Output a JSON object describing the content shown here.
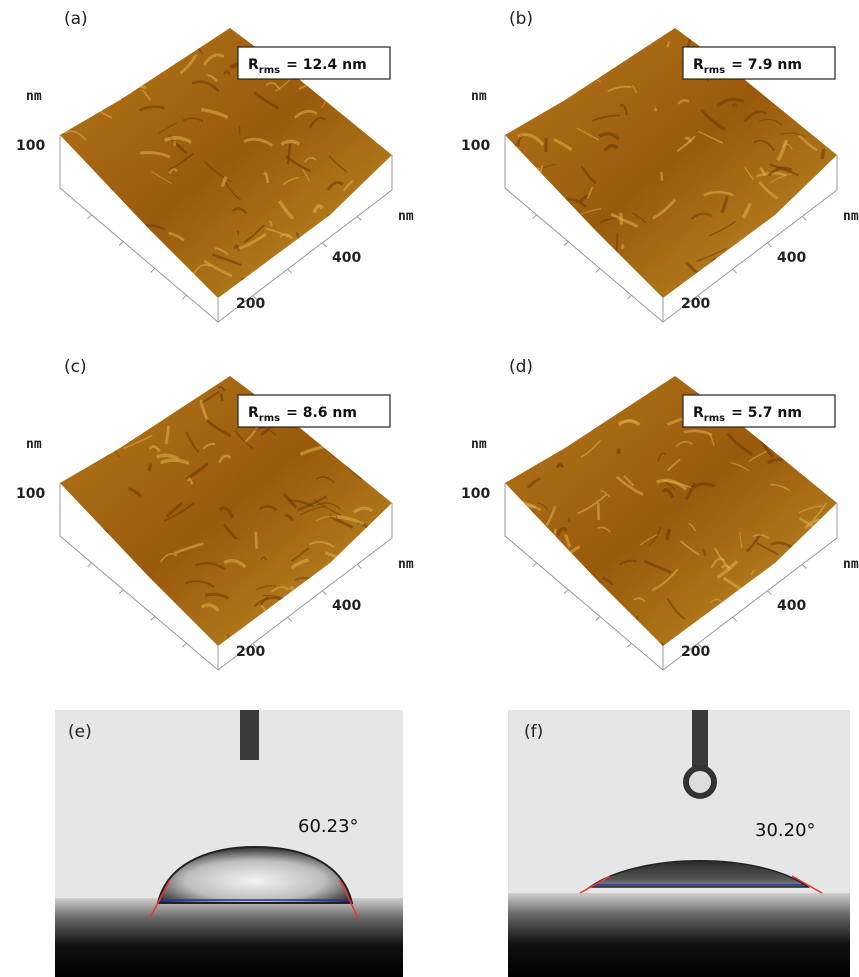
{
  "panels": [
    {
      "label": "(a)",
      "rms": {
        "symbol": "R",
        "subscript": "rms",
        "text": "= 12.4 nm"
      },
      "z_unit": "nm",
      "z_tick": "100",
      "xy_unit": "nm",
      "x_tick": "400",
      "y_tick": "200"
    },
    {
      "label": "(b)",
      "rms": {
        "symbol": "R",
        "subscript": "rms",
        "text": "= 7.9 nm"
      },
      "z_unit": "nm",
      "z_tick": "100",
      "xy_unit": "nm",
      "x_tick": "400",
      "y_tick": "200"
    },
    {
      "label": "(c)",
      "rms": {
        "symbol": "R",
        "subscript": "rms",
        "text": "= 8.6 nm"
      },
      "z_unit": "nm",
      "z_tick": "100",
      "xy_unit": "nm",
      "x_tick": "400",
      "y_tick": "200"
    },
    {
      "label": "(d)",
      "rms": {
        "symbol": "R",
        "subscript": "rms",
        "text": "= 5.7 nm"
      },
      "z_unit": "nm",
      "z_tick": "100",
      "xy_unit": "nm",
      "x_tick": "400",
      "y_tick": "200"
    }
  ],
  "contact_angle": [
    {
      "label": "(e)",
      "angle": "60.23°"
    },
    {
      "label": "(f)",
      "angle": "30.20°"
    }
  ]
}
